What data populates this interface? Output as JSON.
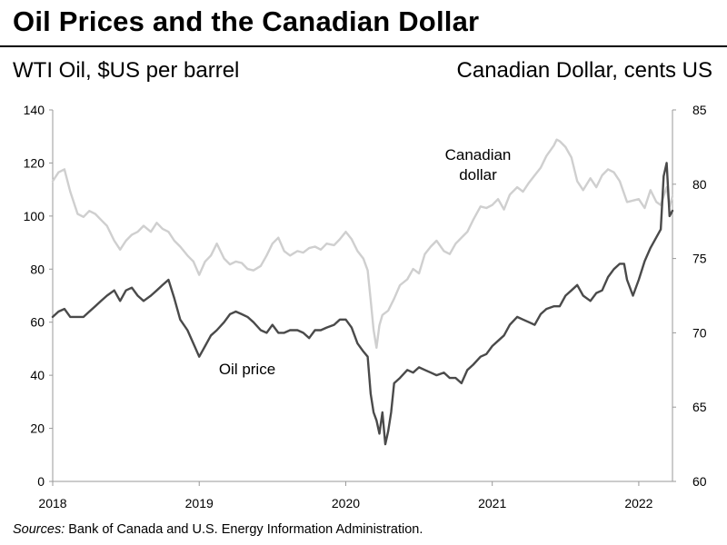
{
  "title": "Oil Prices and the Canadian Dollar",
  "left_axis_label": "WTI Oil, $US per barrel",
  "right_axis_label": "Canadian Dollar, cents US",
  "source_prefix": "Sources:",
  "source_text": " Bank of Canada and U.S. Energy Information Administration.",
  "annotations": {
    "cad": [
      "Canadian",
      "dollar"
    ],
    "oil": "Oil price"
  },
  "chart_data": {
    "type": "line",
    "x_ticks": [
      "2018",
      "2019",
      "2020",
      "2021",
      "2022"
    ],
    "x_range": [
      2018.0,
      2022.23
    ],
    "left_axis": {
      "label": "WTI Oil, $US per barrel",
      "range": [
        0,
        140
      ],
      "ticks": [
        0,
        20,
        40,
        60,
        80,
        100,
        120,
        140
      ]
    },
    "right_axis": {
      "label": "Canadian Dollar, cents US",
      "range": [
        60,
        85
      ],
      "ticks": [
        60,
        65,
        70,
        75,
        80,
        85
      ]
    },
    "series": [
      {
        "name": "Canadian dollar",
        "axis": "right",
        "color": "#cfcfcf",
        "x": [
          2018.0,
          2018.04,
          2018.08,
          2018.12,
          2018.17,
          2018.21,
          2018.25,
          2018.29,
          2018.33,
          2018.37,
          2018.42,
          2018.46,
          2018.5,
          2018.54,
          2018.58,
          2018.62,
          2018.67,
          2018.71,
          2018.75,
          2018.79,
          2018.83,
          2018.87,
          2018.92,
          2018.96,
          2019.0,
          2019.04,
          2019.08,
          2019.12,
          2019.17,
          2019.21,
          2019.25,
          2019.29,
          2019.33,
          2019.37,
          2019.42,
          2019.46,
          2019.5,
          2019.54,
          2019.58,
          2019.62,
          2019.67,
          2019.71,
          2019.75,
          2019.79,
          2019.83,
          2019.87,
          2019.92,
          2019.96,
          2020.0,
          2020.04,
          2020.08,
          2020.12,
          2020.15,
          2020.17,
          2020.19,
          2020.21,
          2020.23,
          2020.25,
          2020.29,
          2020.33,
          2020.37,
          2020.42,
          2020.46,
          2020.5,
          2020.54,
          2020.58,
          2020.62,
          2020.67,
          2020.71,
          2020.75,
          2020.79,
          2020.83,
          2020.87,
          2020.92,
          2020.96,
          2021.0,
          2021.04,
          2021.08,
          2021.12,
          2021.17,
          2021.21,
          2021.25,
          2021.29,
          2021.33,
          2021.37,
          2021.42,
          2021.44,
          2021.46,
          2021.5,
          2021.54,
          2021.58,
          2021.62,
          2021.67,
          2021.71,
          2021.75,
          2021.79,
          2021.83,
          2021.87,
          2021.92,
          2021.96,
          2022.0,
          2022.04,
          2022.08,
          2022.12,
          2022.15,
          2022.17,
          2022.19,
          2022.21,
          2022.23
        ],
        "values": [
          80.2,
          80.8,
          81.0,
          79.5,
          78.0,
          77.8,
          78.2,
          78.0,
          77.6,
          77.2,
          76.2,
          75.6,
          76.2,
          76.6,
          76.8,
          77.2,
          76.8,
          77.4,
          77.0,
          76.8,
          76.2,
          75.8,
          75.2,
          74.8,
          73.9,
          74.8,
          75.2,
          76.0,
          75.0,
          74.6,
          74.8,
          74.7,
          74.3,
          74.2,
          74.5,
          75.2,
          76.0,
          76.4,
          75.5,
          75.2,
          75.5,
          75.4,
          75.7,
          75.8,
          75.6,
          76.0,
          75.9,
          76.3,
          76.8,
          76.3,
          75.5,
          75.0,
          74.2,
          72.2,
          70.2,
          69.0,
          70.5,
          71.2,
          71.5,
          72.3,
          73.2,
          73.6,
          74.3,
          74.0,
          75.3,
          75.8,
          76.2,
          75.5,
          75.3,
          76.0,
          76.4,
          76.8,
          77.6,
          78.5,
          78.4,
          78.6,
          79.0,
          78.3,
          79.3,
          79.8,
          79.5,
          80.1,
          80.6,
          81.1,
          81.9,
          82.6,
          83.0,
          82.9,
          82.5,
          81.8,
          80.2,
          79.6,
          80.4,
          79.8,
          80.6,
          81.0,
          80.8,
          80.2,
          78.8,
          78.9,
          79.0,
          78.4,
          79.6,
          78.8,
          78.6,
          79.2,
          79.8,
          78.5,
          79.2
        ]
      },
      {
        "name": "Oil price",
        "axis": "left",
        "color": "#4a4a4a",
        "x": [
          2018.0,
          2018.04,
          2018.08,
          2018.12,
          2018.17,
          2018.21,
          2018.25,
          2018.29,
          2018.33,
          2018.37,
          2018.42,
          2018.46,
          2018.5,
          2018.54,
          2018.58,
          2018.62,
          2018.67,
          2018.71,
          2018.75,
          2018.79,
          2018.83,
          2018.87,
          2018.92,
          2018.96,
          2019.0,
          2019.04,
          2019.08,
          2019.12,
          2019.17,
          2019.21,
          2019.25,
          2019.29,
          2019.33,
          2019.37,
          2019.42,
          2019.46,
          2019.5,
          2019.54,
          2019.58,
          2019.62,
          2019.67,
          2019.71,
          2019.75,
          2019.79,
          2019.83,
          2019.87,
          2019.92,
          2019.96,
          2020.0,
          2020.04,
          2020.08,
          2020.12,
          2020.15,
          2020.17,
          2020.19,
          2020.21,
          2020.23,
          2020.25,
          2020.27,
          2020.29,
          2020.31,
          2020.33,
          2020.37,
          2020.42,
          2020.46,
          2020.5,
          2020.54,
          2020.58,
          2020.62,
          2020.67,
          2020.71,
          2020.75,
          2020.79,
          2020.83,
          2020.87,
          2020.92,
          2020.96,
          2021.0,
          2021.04,
          2021.08,
          2021.12,
          2021.17,
          2021.21,
          2021.25,
          2021.29,
          2021.33,
          2021.37,
          2021.42,
          2021.46,
          2021.5,
          2021.54,
          2021.58,
          2021.62,
          2021.67,
          2021.71,
          2021.75,
          2021.79,
          2021.83,
          2021.87,
          2021.9,
          2021.92,
          2021.96,
          2022.0,
          2022.04,
          2022.08,
          2022.12,
          2022.15,
          2022.17,
          2022.19,
          2022.21,
          2022.23
        ],
        "values": [
          62,
          64,
          65,
          62,
          62,
          62,
          64,
          66,
          68,
          70,
          72,
          68,
          72,
          73,
          70,
          68,
          70,
          72,
          74,
          76,
          69,
          61,
          57,
          52,
          47,
          51,
          55,
          57,
          60,
          63,
          64,
          63,
          62,
          60,
          57,
          56,
          59,
          56,
          56,
          57,
          57,
          56,
          54,
          57,
          57,
          58,
          59,
          61,
          61,
          58,
          52,
          49,
          47,
          33,
          26,
          23,
          18,
          26,
          14,
          19,
          26,
          37,
          39,
          42,
          41,
          43,
          42,
          41,
          40,
          41,
          39,
          39,
          37,
          42,
          44,
          47,
          48,
          51,
          53,
          55,
          59,
          62,
          61,
          60,
          59,
          63,
          65,
          66,
          66,
          70,
          72,
          74,
          70,
          68,
          71,
          72,
          77,
          80,
          82,
          82,
          76,
          70,
          76,
          83,
          88,
          92,
          95,
          115,
          120,
          100,
          102
        ]
      }
    ]
  }
}
